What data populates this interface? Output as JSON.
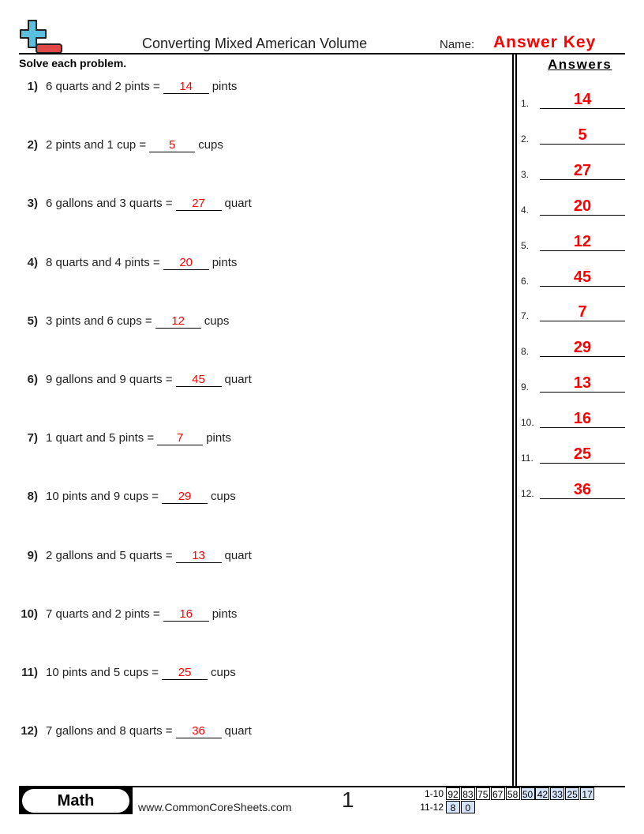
{
  "header": {
    "title": "Converting Mixed American Volume",
    "name_label": "Name:",
    "name_value": "Answer Key",
    "logo": "plus-minus-logo-icon"
  },
  "instructions": "Solve each problem.",
  "answers_heading": "Answers",
  "problems": [
    {
      "num": "1)",
      "pre": "6 quarts and 2 pints =",
      "answer": "14",
      "unit": "pints"
    },
    {
      "num": "2)",
      "pre": "2 pints and 1 cup =",
      "answer": "5",
      "unit": "cups"
    },
    {
      "num": "3)",
      "pre": "6 gallons and 3 quarts =",
      "answer": "27",
      "unit": "quart"
    },
    {
      "num": "4)",
      "pre": "8 quarts and 4 pints =",
      "answer": "20",
      "unit": "pints"
    },
    {
      "num": "5)",
      "pre": "3 pints and 6 cups =",
      "answer": "12",
      "unit": "cups"
    },
    {
      "num": "6)",
      "pre": "9 gallons and 9 quarts =",
      "answer": "45",
      "unit": "quart"
    },
    {
      "num": "7)",
      "pre": "1 quart and 5 pints =",
      "answer": "7",
      "unit": "pints"
    },
    {
      "num": "8)",
      "pre": "10 pints and 9 cups =",
      "answer": "29",
      "unit": "cups"
    },
    {
      "num": "9)",
      "pre": "2 gallons and 5 quarts =",
      "answer": "13",
      "unit": "quart"
    },
    {
      "num": "10)",
      "pre": "7 quarts and 2 pints =",
      "answer": "16",
      "unit": "pints"
    },
    {
      "num": "11)",
      "pre": "10 pints and 5 cups =",
      "answer": "25",
      "unit": "cups"
    },
    {
      "num": "12)",
      "pre": "7 gallons and 8 quarts =",
      "answer": "36",
      "unit": "quart"
    }
  ],
  "answer_key": [
    {
      "label": "1.",
      "value": "14"
    },
    {
      "label": "2.",
      "value": "5"
    },
    {
      "label": "3.",
      "value": "27"
    },
    {
      "label": "4.",
      "value": "20"
    },
    {
      "label": "5.",
      "value": "12"
    },
    {
      "label": "6.",
      "value": "45"
    },
    {
      "label": "7.",
      "value": "7"
    },
    {
      "label": "8.",
      "value": "29"
    },
    {
      "label": "9.",
      "value": "13"
    },
    {
      "label": "10.",
      "value": "16"
    },
    {
      "label": "11.",
      "value": "25"
    },
    {
      "label": "12.",
      "value": "36"
    }
  ],
  "footer": {
    "subject": "Math",
    "url": "www.CommonCoreSheets.com",
    "page": "1",
    "score_rows": [
      {
        "label": "1-10",
        "cells": [
          "92",
          "83",
          "75",
          "67",
          "58",
          "50",
          "42",
          "33",
          "25",
          "17"
        ]
      },
      {
        "label": "11-12",
        "cells": [
          "8",
          "0"
        ]
      }
    ]
  },
  "colors": {
    "answer": "#ff0000",
    "score_blue": "#d6e4fb",
    "logo_blue": "#5bc0de",
    "logo_red": "#e04848"
  }
}
